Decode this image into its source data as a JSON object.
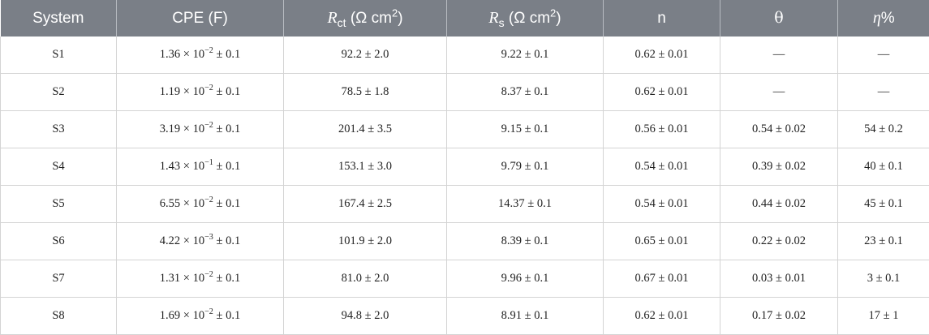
{
  "table": {
    "headers": {
      "system": "System",
      "cpe": "CPE (F)",
      "rct_symbol": "R",
      "rct_sub": "ct",
      "rct_unit": "(Ω cm",
      "rct_unit_sup": "2",
      "rct_unit_close": ")",
      "rs_symbol": "R",
      "rs_sub": "s",
      "rs_unit": "(Ω cm",
      "rs_unit_sup": "2",
      "rs_unit_close": ")",
      "n": "n",
      "theta": "θ",
      "eta_symbol": "η",
      "eta_pct": "%"
    },
    "rows": [
      {
        "system": "S1",
        "cpe_mant": "1.36 × 10",
        "cpe_exp": "−2",
        "cpe_err": " ± 0.1",
        "rct": "92.2 ± 2.0",
        "rs": "9.22 ± 0.1",
        "n": "0.62 ± 0.01",
        "theta": "—",
        "eta": "—"
      },
      {
        "system": "S2",
        "cpe_mant": "1.19 × 10",
        "cpe_exp": "−2",
        "cpe_err": " ± 0.1",
        "rct": "78.5 ± 1.8",
        "rs": "8.37 ± 0.1",
        "n": "0.62 ± 0.01",
        "theta": "—",
        "eta": "—"
      },
      {
        "system": "S3",
        "cpe_mant": "3.19 × 10",
        "cpe_exp": "−2",
        "cpe_err": " ± 0.1",
        "rct": "201.4 ± 3.5",
        "rs": "9.15 ± 0.1",
        "n": "0.56 ± 0.01",
        "theta": "0.54 ± 0.02",
        "eta": "54 ± 0.2"
      },
      {
        "system": "S4",
        "cpe_mant": "1.43 × 10",
        "cpe_exp": "−1",
        "cpe_err": " ± 0.1",
        "rct": "153.1 ± 3.0",
        "rs": "9.79 ± 0.1",
        "n": "0.54 ± 0.01",
        "theta": "0.39 ± 0.02",
        "eta": "40 ± 0.1"
      },
      {
        "system": "S5",
        "cpe_mant": "6.55 × 10",
        "cpe_exp": "−2",
        "cpe_err": " ± 0.1",
        "rct": "167.4 ± 2.5",
        "rs": "14.37 ± 0.1",
        "n": "0.54 ± 0.01",
        "theta": "0.44 ± 0.02",
        "eta": "45 ± 0.1"
      },
      {
        "system": "S6",
        "cpe_mant": "4.22 × 10",
        "cpe_exp": "−3",
        "cpe_err": " ± 0.1",
        "rct": "101.9 ± 2.0",
        "rs": "8.39 ± 0.1",
        "n": "0.65 ± 0.01",
        "theta": "0.22 ± 0.02",
        "eta": "23 ± 0.1"
      },
      {
        "system": "S7",
        "cpe_mant": "1.31 × 10",
        "cpe_exp": "−2",
        "cpe_err": " ± 0.1",
        "rct": "81.0 ± 2.0",
        "rs": "9.96 ± 0.1",
        "n": "0.67 ± 0.01",
        "theta": "0.03 ± 0.01",
        "eta": "3 ± 0.1"
      },
      {
        "system": "S8",
        "cpe_mant": "1.69 × 10",
        "cpe_exp": "−2",
        "cpe_err": " ± 0.1",
        "rct": "94.8 ± 2.0",
        "rs": "8.91 ± 0.1",
        "n": "0.62 ± 0.01",
        "theta": "0.17 ± 0.02",
        "eta": "17 ± 1"
      }
    ]
  }
}
